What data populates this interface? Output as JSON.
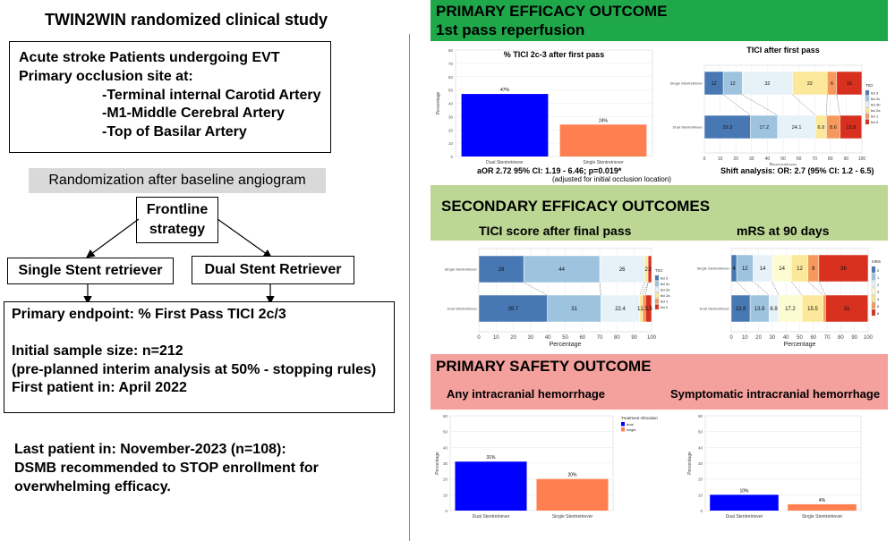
{
  "left": {
    "title": "TWIN2WIN randomized clinical study",
    "population": {
      "line1": "Acute stroke Patients undergoing EVT",
      "line2": "Primary occlusion site at:",
      "sites": [
        "-Terminal internal Carotid Artery",
        "-M1-Middle Cerebral Artery",
        "-Top of Basilar Artery"
      ]
    },
    "randomization": "Randomization after baseline angiogram",
    "frontline": [
      "Frontline",
      "strategy"
    ],
    "single_arm": "Single Stent retriever",
    "dual_arm": "Dual Stent Retriever",
    "endpoint": {
      "primary": "Primary endpoint:  % First Pass TICI 2c/3",
      "sample": "Initial sample size: n=212",
      "interim": "(pre-planned interim analysis at 50% - stopping rules)",
      "first_patient": "First patient in: April 2022"
    },
    "conclusion": [
      "Last patient in: November-2023 (n=108):",
      "DSMB recommended to STOP enrollment for",
      "overwhelming efficacy."
    ]
  },
  "right": {
    "primary_efficacy": {
      "title1": "PRIMARY EFFICACY OUTCOME",
      "title2": "1st pass reperfusion",
      "bar_note": "aOR 2.72 95% CI: 1.19 - 6.46; p=0.019*",
      "adjust_note": "(adjusted for initial occlusion location)",
      "shift_note": "Shift analysis:  OR: 2.7 (95% CI: 1.2 - 6.5)"
    },
    "secondary_efficacy": {
      "title": "SECONDARY EFFICACY OUTCOMES",
      "sub1": "TICI score after final pass",
      "sub2": "mRS at 90 days"
    },
    "safety": {
      "title": "PRIMARY SAFETY OUTCOME",
      "sub1": "Any intracranial hemorrhage",
      "sub2": "Symptomatic intracranial hemorrhage",
      "legend_title": "Treatment Allocation",
      "legend_items": [
        "dual",
        "single"
      ]
    },
    "colors": {
      "green": "#1ea84a",
      "light_green": "#bcd694",
      "pink": "#f4a09c",
      "dual": "#0000ff",
      "single": "#ff7f50"
    }
  },
  "chart_data": [
    {
      "type": "bar",
      "title": "% TICI 2c-3 after first pass",
      "ylabel": "Percentage",
      "categories": [
        "Dual Stentretriever",
        "Single Stentretriever"
      ],
      "values": [
        47,
        24
      ],
      "labels": [
        "47%",
        "24%"
      ],
      "ylim": [
        0,
        80
      ],
      "yticks": [
        "0",
        "10",
        "20",
        "30",
        "40",
        "50",
        "60",
        "70",
        "80"
      ]
    },
    {
      "type": "bar",
      "title": "TICI after first pass",
      "xlabel": "Percentage",
      "stacked": true,
      "legend_title": "TICI",
      "legend": [
        "tici 3",
        "tici 2c",
        "tici 2b",
        "tici 2a",
        "tici 1",
        "tici 0"
      ],
      "categories": [
        "Single Stentretriever",
        "Dual Stentretriever"
      ],
      "series_values": [
        [
          12,
          12,
          32,
          22,
          6,
          16
        ],
        [
          29.3,
          17.2,
          24.1,
          6.9,
          8.6,
          13.8
        ]
      ],
      "xticks": [
        "0",
        "10",
        "20",
        "30",
        "40",
        "50",
        "60",
        "70",
        "80",
        "90",
        "100"
      ]
    },
    {
      "type": "bar",
      "title": "TICI score after final pass",
      "xlabel": "Percentage",
      "stacked": true,
      "legend_title": "TICI",
      "legend": [
        "tici 3",
        "tici 2c",
        "tici 2b",
        "tici 2a",
        "tici 1",
        "tici 0"
      ],
      "categories": [
        "Single Stentretriever",
        "Dual Stentretriever"
      ],
      "series_values": [
        [
          26,
          44,
          26,
          2,
          0,
          2
        ],
        [
          39.7,
          31,
          22.4,
          1.7,
          1.7,
          3.5
        ]
      ],
      "value_labels": [
        [
          "26",
          "44",
          "26",
          "2",
          "",
          "2"
        ],
        [
          "39.7",
          "31",
          "22.4",
          "1.7",
          "1.7",
          "3.5"
        ]
      ],
      "xticks": [
        "0",
        "10",
        "20",
        "30",
        "40",
        "50",
        "60",
        "70",
        "80",
        "90",
        "100"
      ]
    },
    {
      "type": "bar",
      "title": "mRS at 90 days",
      "xlabel": "Percentage",
      "stacked": true,
      "legend_title": "mRS",
      "legend": [
        "0",
        "1",
        "2",
        "3",
        "4",
        "5",
        "6"
      ],
      "categories": [
        "Single Stentretriever",
        "Dual Stentretriever"
      ],
      "series_values": [
        [
          4,
          12,
          14,
          14,
          12,
          8,
          36
        ],
        [
          13.8,
          13.8,
          6.9,
          17.2,
          15.5,
          1.7,
          31
        ]
      ],
      "value_labels": [
        [
          "4",
          "12",
          "14",
          "14",
          "12",
          "8",
          "36"
        ],
        [
          "13.8",
          "13.8",
          "6.9",
          "17.2",
          "15.5",
          "1.7",
          "31"
        ]
      ],
      "xticks": [
        "0",
        "10",
        "20",
        "30",
        "40",
        "50",
        "60",
        "70",
        "80",
        "90",
        "100"
      ]
    },
    {
      "type": "bar",
      "title": "Any intracranial hemorrhage",
      "ylabel": "Percentage",
      "categories": [
        "Dual Stentretriever",
        "Single Stentretriever"
      ],
      "values": [
        31,
        20
      ],
      "labels": [
        "31%",
        "20%"
      ],
      "ylim": [
        0,
        60
      ],
      "yticks": [
        "0",
        "10",
        "20",
        "30",
        "40",
        "50",
        "60"
      ]
    },
    {
      "type": "bar",
      "title": "Symptomatic intracranial hemorrhage",
      "ylabel": "Percentage",
      "categories": [
        "Dual Stentretriever",
        "Single Stentretriever"
      ],
      "values": [
        10,
        4
      ],
      "labels": [
        "10%",
        "4%"
      ],
      "ylim": [
        0,
        60
      ],
      "yticks": [
        "0",
        "10",
        "20",
        "30",
        "40",
        "50",
        "60"
      ]
    }
  ]
}
